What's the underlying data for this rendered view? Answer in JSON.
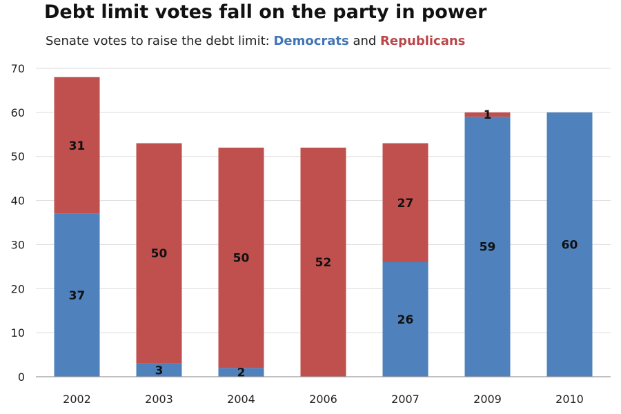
{
  "title": "Debt limit votes fall on the party in power",
  "subtitle": {
    "prefix": "Senate votes to raise the debt limit: ",
    "dem_word": "Democrats",
    "joiner": " and ",
    "rep_word": "Republicans"
  },
  "chart_data": {
    "type": "bar",
    "stacked": true,
    "categories": [
      "2002",
      "2003",
      "2004",
      "2006",
      "2007",
      "2009",
      "2010"
    ],
    "series": [
      {
        "name": "Democrats",
        "color": "#4f81bd",
        "values": [
          37,
          3,
          2,
          0,
          26,
          59,
          60
        ]
      },
      {
        "name": "Republicans",
        "color": "#c0504d",
        "values": [
          31,
          50,
          50,
          52,
          27,
          1,
          0
        ]
      }
    ],
    "ylim": [
      0,
      70
    ],
    "yticks": [
      0,
      10,
      20,
      30,
      40,
      50,
      60,
      70
    ],
    "grid": true,
    "legend": "in subtitle",
    "xlabel": "",
    "ylabel": ""
  }
}
